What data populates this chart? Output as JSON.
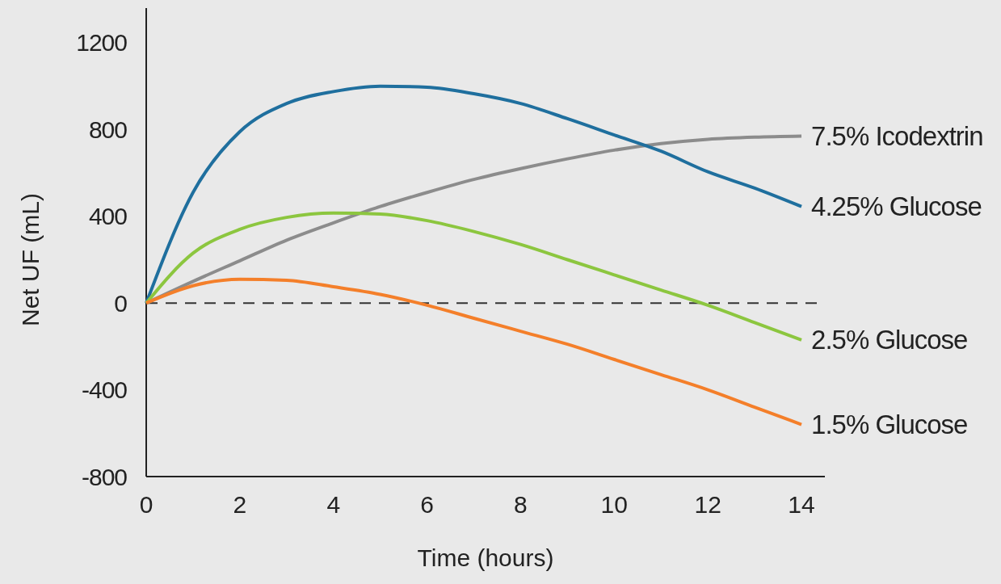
{
  "chart_data": {
    "type": "line",
    "xlabel": "Time (hours)",
    "ylabel": "Net UF (mL)",
    "x": [
      0,
      1,
      2,
      3,
      4,
      5,
      6,
      7,
      8,
      9,
      10,
      11,
      12,
      13,
      14
    ],
    "series": [
      {
        "name": "7.5% Icodextrin",
        "color": "#8c8c8c",
        "values": [
          0,
          100,
          195,
          290,
          370,
          445,
          510,
          570,
          620,
          665,
          705,
          735,
          755,
          765,
          770
        ]
      },
      {
        "name": "4.25% Glucose",
        "color": "#1f6f9e",
        "values": [
          0,
          510,
          790,
          920,
          975,
          1000,
          995,
          965,
          920,
          850,
          775,
          700,
          605,
          530,
          445
        ]
      },
      {
        "name": "2.5% Glucose",
        "color": "#8cc63f",
        "values": [
          0,
          230,
          340,
          395,
          415,
          410,
          380,
          330,
          270,
          200,
          130,
          60,
          -10,
          -90,
          -170
        ]
      },
      {
        "name": "1.5% Glucose",
        "color": "#f47f2a",
        "values": [
          0,
          80,
          110,
          105,
          75,
          40,
          -10,
          -70,
          -130,
          -190,
          -260,
          -330,
          -400,
          -480,
          -560
        ]
      }
    ],
    "xlim": [
      0,
      14.5
    ],
    "ylim": [
      -800,
      1360
    ],
    "xticks": [
      0,
      2,
      4,
      6,
      8,
      10,
      12,
      14
    ],
    "yticks": [
      -800,
      -400,
      0,
      400,
      800,
      1200
    ],
    "ref_lines": [
      {
        "axis": "y",
        "value": 0,
        "line_style": "dashed",
        "color": "#333333"
      }
    ],
    "grid": false,
    "legend": false,
    "marker": "none",
    "line_style": "solid"
  }
}
